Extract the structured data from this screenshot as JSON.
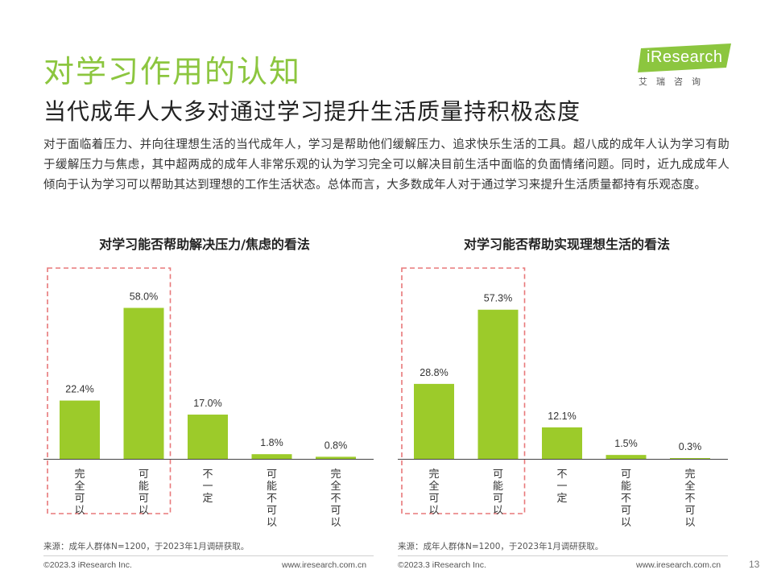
{
  "header": {
    "title": "对学习作用的认知",
    "subtitle": "当代成年人大多对通过学习提升生活质量持积极态度"
  },
  "logo": {
    "name": "iResearch",
    "sub": "艾瑞咨询",
    "color": "#8cc63f"
  },
  "intro": "对于面临着压力、并向往理想生活的当代成年人，学习是帮助他们缓解压力、追求快乐生活的工具。超八成的成年人认为学习有助于缓解压力与焦虑，其中超两成的成年人非常乐观的认为学习完全可以解决目前生活中面临的负面情绪问题。同时，近九成成年人倾向于认为学习可以帮助其达到理想的工作生活状态。总体而言，大多数成年人对于通过学习来提升生活质量都持有乐观态度。",
  "colors": {
    "accent": "#8cc63f",
    "bar": "#9ccb2a",
    "highlight": "#e8787a"
  },
  "chart_data": [
    {
      "type": "bar",
      "title": "对学习能否帮助解决压力/焦虑的看法",
      "categories": [
        "完全可以",
        "可能可以",
        "不一定",
        "可能不可以",
        "完全不可以"
      ],
      "values": [
        22.4,
        58.0,
        17.0,
        1.8,
        0.8
      ],
      "value_labels": [
        "22.4%",
        "58.0%",
        "17.0%",
        "1.8%",
        "0.8%"
      ],
      "ylim": [
        0,
        60
      ],
      "highlight": [
        0,
        1
      ],
      "source": "来源：成年人群体N=1200，于2023年1月调研获取。"
    },
    {
      "type": "bar",
      "title": "对学习能否帮助实现理想生活的看法",
      "categories": [
        "完全可以",
        "可能可以",
        "不一定",
        "可能不可以",
        "完全不可以"
      ],
      "values": [
        28.8,
        57.3,
        12.1,
        1.5,
        0.3
      ],
      "value_labels": [
        "28.8%",
        "57.3%",
        "12.1%",
        "1.5%",
        "0.3%"
      ],
      "ylim": [
        0,
        60
      ],
      "highlight": [
        0,
        1
      ],
      "source": "来源：成年人群体N=1200，于2023年1月调研获取。"
    }
  ],
  "footer": {
    "left": [
      {
        "copyright": "©2023.3 iResearch Inc.",
        "url": "www.iresearch.com.cn"
      },
      {
        "copyright": "©2023.3 iResearch Inc.",
        "url": "www.iresearch.com.cn"
      }
    ],
    "page": "13"
  }
}
